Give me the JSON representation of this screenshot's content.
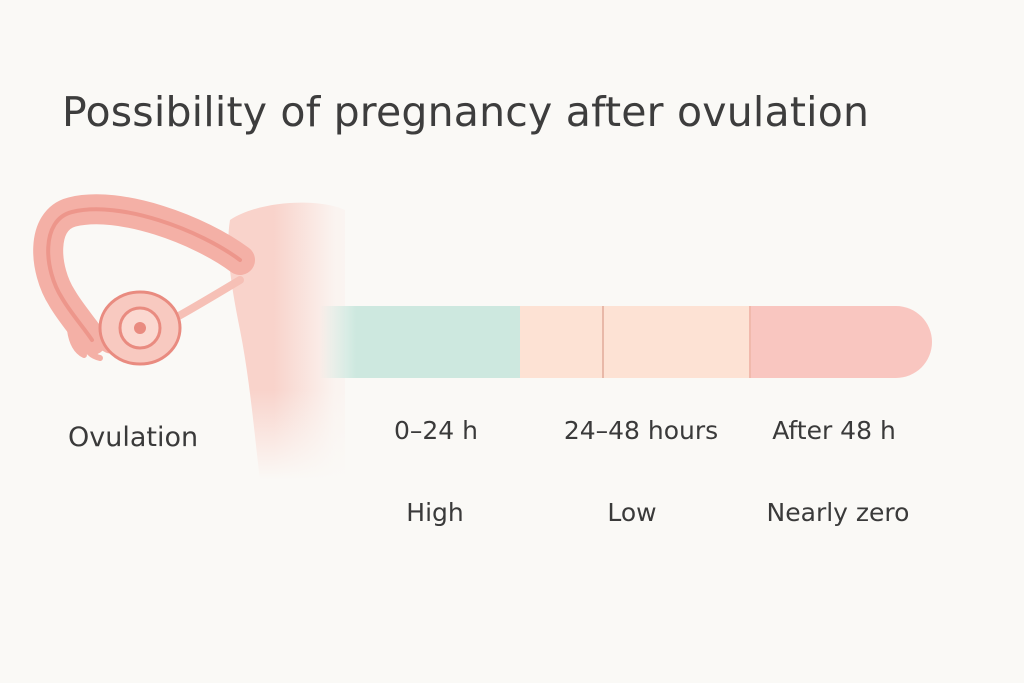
{
  "title": "Possibility of pregnancy after ovulation",
  "ovulation_label": "Ovulation",
  "colors": {
    "high": "#cde8df",
    "low": "#fde2d4",
    "zero": "#f9c6c0",
    "divider": "#e8b8a8",
    "organ": "#f4b0a6",
    "organ_dark": "#e98b80"
  },
  "segments": [
    {
      "id": "high",
      "time_label": "0–24 h",
      "likelihood": "High"
    },
    {
      "id": "low",
      "time_label": "24–48 hours",
      "likelihood": "Low"
    },
    {
      "id": "zero",
      "time_label": "After 48 h",
      "likelihood": "Nearly zero"
    }
  ]
}
